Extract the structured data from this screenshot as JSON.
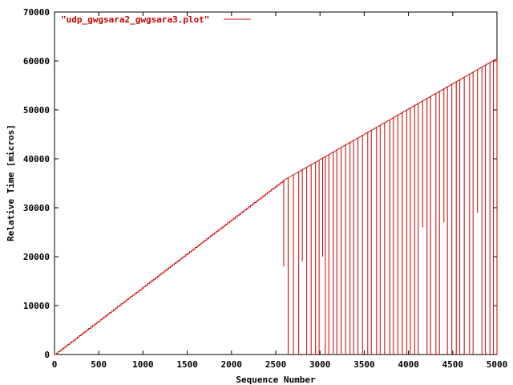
{
  "chart_data": {
    "type": "line",
    "title": "",
    "xlabel": "Sequence Number",
    "ylabel": "Relative Time [micros]",
    "xlim": [
      0,
      5000
    ],
    "ylim": [
      0,
      70000
    ],
    "x_ticks": [
      0,
      500,
      1000,
      1500,
      2000,
      2500,
      3000,
      3500,
      4000,
      4500,
      5000
    ],
    "y_ticks": [
      0,
      10000,
      20000,
      30000,
      40000,
      50000,
      60000,
      70000
    ],
    "x_tick_labels": [
      "0",
      "500",
      "1000",
      "1500",
      "2000",
      "2500",
      "3000",
      "3500",
      "4000",
      "4500",
      "5000"
    ],
    "y_tick_labels": [
      "0",
      "10000",
      "20000",
      "30000",
      "40000",
      "50000",
      "60000",
      "70000"
    ],
    "grid": false,
    "legend_position": "top-left",
    "series": [
      {
        "name": "\"udp_gwgsara2_gwgsara3.plot\"",
        "color": "#cc0000",
        "style": "steps",
        "linear_segment": {
          "x": [
            0,
            2580
          ],
          "y": [
            0,
            35500
          ]
        },
        "upper_envelope": {
          "x": [
            2580,
            5000
          ],
          "y": [
            35500,
            60500
          ]
        },
        "drop_x": [
          2590,
          2640,
          2700,
          2760,
          2800,
          2850,
          2900,
          2950,
          2990,
          3030,
          3060,
          3100,
          3150,
          3190,
          3240,
          3290,
          3340,
          3380,
          3430,
          3480,
          3540,
          3580,
          3640,
          3680,
          3730,
          3790,
          3830,
          3880,
          3930,
          3980,
          4020,
          4070,
          4110,
          4160,
          4210,
          4250,
          4310,
          4350,
          4400,
          4440,
          4490,
          4540,
          4580,
          4630,
          4690,
          4730,
          4780,
          4830,
          4870,
          4920,
          4960,
          5000
        ],
        "drop_y": [
          18000,
          0,
          0,
          0,
          19000,
          0,
          0,
          0,
          0,
          20000,
          0,
          0,
          0,
          0,
          0,
          0,
          0,
          0,
          0,
          0,
          0,
          0,
          0,
          0,
          0,
          0,
          0,
          0,
          0,
          0,
          0,
          0,
          0,
          26000,
          0,
          0,
          0,
          0,
          27000,
          0,
          0,
          0,
          0,
          0,
          0,
          0,
          29000,
          0,
          0,
          0,
          0,
          0
        ]
      }
    ]
  }
}
